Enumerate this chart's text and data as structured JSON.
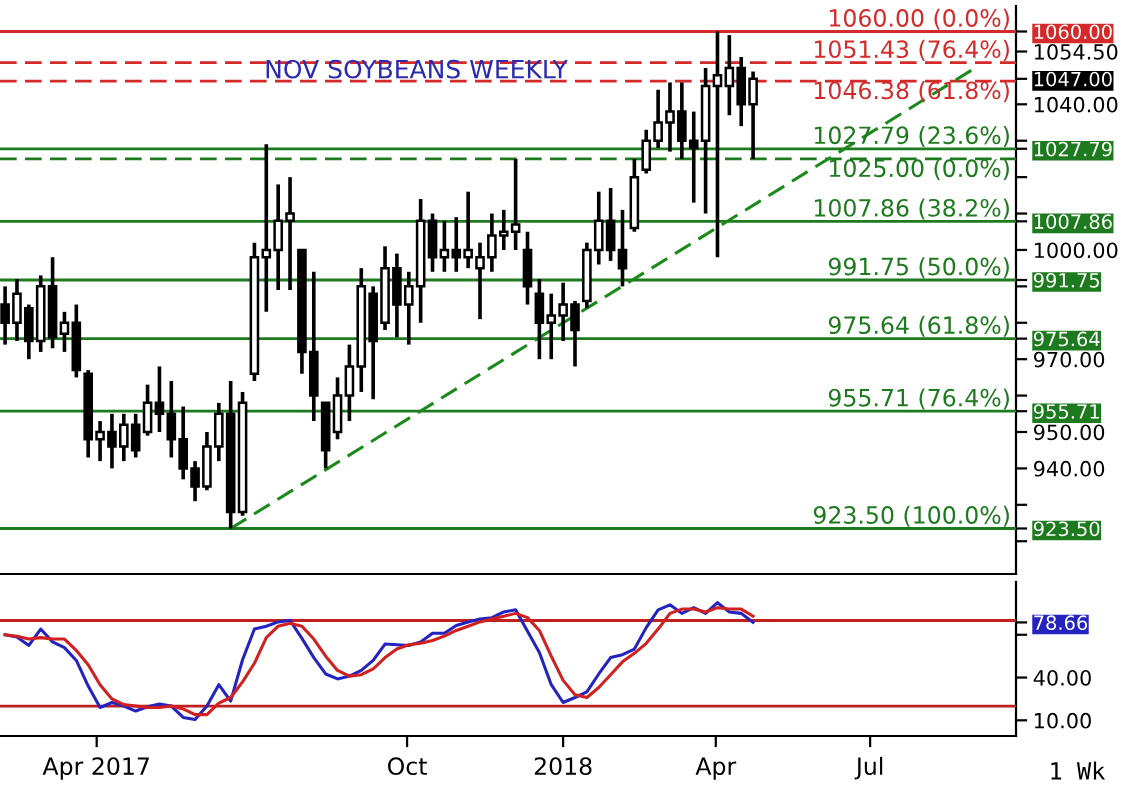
{
  "chart_data": [
    {
      "type": "candlestick",
      "title": "NOV SOYBEANS WEEKLY",
      "x": [
        "2017-02-06",
        "2017-02-13",
        "2017-02-20",
        "2017-02-27",
        "2017-03-06",
        "2017-03-13",
        "2017-03-20",
        "2017-03-27",
        "2017-04-03",
        "2017-04-10",
        "2017-04-17",
        "2017-04-24",
        "2017-05-01",
        "2017-05-08",
        "2017-05-15",
        "2017-05-22",
        "2017-05-29",
        "2017-06-05",
        "2017-06-12",
        "2017-06-19",
        "2017-06-26",
        "2017-07-03",
        "2017-07-10",
        "2017-07-17",
        "2017-07-24",
        "2017-07-31",
        "2017-08-07",
        "2017-08-14",
        "2017-08-21",
        "2017-08-28",
        "2017-09-04",
        "2017-09-11",
        "2017-09-18",
        "2017-09-25",
        "2017-10-02",
        "2017-10-09",
        "2017-10-16",
        "2017-10-23",
        "2017-10-30",
        "2017-11-06",
        "2017-11-13",
        "2017-11-20",
        "2017-11-27",
        "2017-12-04",
        "2017-12-11",
        "2017-12-18",
        "2017-12-25",
        "2018-01-01",
        "2018-01-08",
        "2018-01-15",
        "2018-01-22",
        "2018-01-29",
        "2018-02-05",
        "2018-02-12",
        "2018-02-19",
        "2018-02-26",
        "2018-03-05",
        "2018-03-12",
        "2018-03-19",
        "2018-03-26",
        "2018-04-02",
        "2018-04-09",
        "2018-04-16",
        "2018-04-23"
      ],
      "ohlc": [
        [
          985,
          990,
          974,
          980
        ],
        [
          980,
          992,
          975,
          988
        ],
        [
          984,
          985,
          970,
          975
        ],
        [
          975,
          993,
          972,
          990
        ],
        [
          990,
          998,
          973,
          976
        ],
        [
          977,
          983,
          972,
          980
        ],
        [
          980,
          985,
          965,
          967
        ],
        [
          966,
          967,
          943,
          948
        ],
        [
          948,
          953,
          942,
          950
        ],
        [
          950,
          955,
          940,
          946
        ],
        [
          946,
          955,
          942,
          952
        ],
        [
          952,
          955,
          943,
          945
        ],
        [
          950,
          963,
          949,
          958
        ],
        [
          958,
          968,
          950,
          955
        ],
        [
          955,
          964,
          943,
          948
        ],
        [
          948,
          957,
          937,
          940
        ],
        [
          940,
          942,
          931,
          935
        ],
        [
          935,
          950,
          934,
          946
        ],
        [
          946,
          958,
          942,
          955
        ],
        [
          955,
          964,
          923.5,
          928
        ],
        [
          928,
          961,
          927,
          958
        ],
        [
          966,
          1002,
          964,
          998
        ],
        [
          998,
          1029,
          983,
          1000
        ],
        [
          1000,
          1018,
          989,
          1008
        ],
        [
          1008,
          1020,
          989,
          1010
        ],
        [
          1000,
          1000,
          966,
          972
        ],
        [
          972,
          994,
          953,
          960
        ],
        [
          958,
          958,
          940,
          945
        ],
        [
          950,
          965,
          948,
          960
        ],
        [
          960,
          974,
          953,
          968
        ],
        [
          968,
          995,
          961,
          990
        ],
        [
          988,
          990,
          959,
          975
        ],
        [
          980,
          1001,
          978,
          995
        ],
        [
          995,
          999,
          976,
          985
        ],
        [
          985,
          994,
          974,
          990
        ],
        [
          990,
          1014,
          980,
          1008
        ],
        [
          1008,
          1010,
          994,
          998
        ],
        [
          998,
          1008,
          994,
          1000
        ],
        [
          1000,
          1009,
          994,
          998
        ],
        [
          998,
          1016,
          995,
          1000
        ],
        [
          995,
          1002,
          981,
          998
        ],
        [
          998,
          1010,
          994,
          1004
        ],
        [
          1004,
          1011,
          1000,
          1005
        ],
        [
          1005,
          1025,
          1000,
          1007
        ],
        [
          1000,
          1005,
          985,
          990
        ],
        [
          988,
          992,
          970,
          980
        ],
        [
          980,
          988,
          970,
          982
        ],
        [
          982,
          991,
          975,
          985
        ],
        [
          985,
          986,
          968,
          978
        ],
        [
          986,
          1002,
          984,
          1000
        ],
        [
          1000,
          1016,
          996,
          1008
        ],
        [
          1008,
          1017,
          997,
          1000
        ],
        [
          1000,
          1011,
          990,
          995
        ],
        [
          1006,
          1025,
          1005,
          1020
        ],
        [
          1022,
          1033,
          1021,
          1030
        ],
        [
          1030,
          1044,
          1028,
          1035
        ],
        [
          1035,
          1046,
          1027,
          1038
        ],
        [
          1038,
          1046,
          1025,
          1030
        ],
        [
          1030,
          1038,
          1013,
          1028
        ],
        [
          1030,
          1050,
          1010,
          1045
        ],
        [
          1045,
          1060,
          998,
          1048
        ],
        [
          1045,
          1059,
          1037,
          1050
        ],
        [
          1050,
          1053,
          1034,
          1040
        ],
        [
          1040,
          1049,
          1025,
          1047
        ]
      ],
      "color": "#000000",
      "series": [
        {
          "type": "line",
          "x": [
            "2017-06-19",
            "2018-09-01"
          ],
          "values": [
            923.5,
            1050
          ],
          "color": "#1a8a1a",
          "line_style": "dashed"
        }
      ],
      "ref_lines": [
        {
          "axis": "y",
          "value": 1060,
          "label": "1060.00 (0.0%)",
          "color": "#d42a2a",
          "line_style": "solid"
        },
        {
          "axis": "y",
          "value": 1051.43,
          "label": "1051.43 (76.4%)",
          "color": "#d42a2a",
          "line_style": "dashed"
        },
        {
          "axis": "y",
          "value": 1046.38,
          "label": "1046.38 (61.8%)",
          "color": "#d42a2a",
          "line_style": "dashed"
        },
        {
          "axis": "y",
          "value": 1027.79,
          "label": "1027.79 (23.6%)",
          "color": "#1e7a1e",
          "line_style": "solid"
        },
        {
          "axis": "y",
          "value": 1025.0,
          "label": "1025.00 (0.0%)",
          "color": "#1e7a1e",
          "line_style": "dashed"
        },
        {
          "axis": "y",
          "value": 1007.86,
          "label": "1007.86 (38.2%)",
          "color": "#1e7a1e",
          "line_style": "solid"
        },
        {
          "axis": "y",
          "value": 991.75,
          "label": "991.75 (50.0%)",
          "color": "#1e7a1e",
          "line_style": "solid"
        },
        {
          "axis": "y",
          "value": 975.64,
          "label": "975.64 (61.8%)",
          "color": "#1e7a1e",
          "line_style": "solid"
        },
        {
          "axis": "y",
          "value": 955.71,
          "label": "955.71 (76.4%)",
          "color": "#1e7a1e",
          "line_style": "solid"
        },
        {
          "axis": "y",
          "value": 923.5,
          "label": "923.50 (100.0%)",
          "color": "#1e7a1e",
          "line_style": "solid"
        }
      ],
      "xlim": [
        "2017-02-03",
        "2018-09-25"
      ],
      "ylim": [
        911,
        1067
      ],
      "yticks": [
        {
          "value": 920,
          "label": null
        },
        {
          "value": 923.5,
          "label": "923.50"
        },
        {
          "value": 930,
          "label": null
        },
        {
          "value": 940,
          "label": "940.00"
        },
        {
          "value": 950,
          "label": "950.00"
        },
        {
          "value": 955.71,
          "label": "955.71"
        },
        {
          "value": 960,
          "label": null
        },
        {
          "value": 970,
          "label": "970.00"
        },
        {
          "value": 975.64,
          "label": "975.64"
        },
        {
          "value": 980,
          "label": null
        },
        {
          "value": 990,
          "label": null
        },
        {
          "value": 991.75,
          "label": "991.75"
        },
        {
          "value": 1000,
          "label": "1000.00"
        },
        {
          "value": 1007.86,
          "label": "1007.86"
        },
        {
          "value": 1010,
          "label": null
        },
        {
          "value": 1020,
          "label": null
        },
        {
          "value": 1027.79,
          "label": "1027.79"
        },
        {
          "value": 1030,
          "label": null
        },
        {
          "value": 1040,
          "label": "1040.00"
        },
        {
          "value": 1047,
          "label": "1047.00"
        },
        {
          "value": 1054.5,
          "label": "1054.50"
        },
        {
          "value": 1060,
          "label": "1060.00"
        }
      ],
      "tick_labels": "y"
    },
    {
      "type": "line",
      "x": [
        "2017-02-06",
        "2017-02-13",
        "2017-02-20",
        "2017-02-27",
        "2017-03-06",
        "2017-03-13",
        "2017-03-20",
        "2017-03-27",
        "2017-04-03",
        "2017-04-10",
        "2017-04-17",
        "2017-04-24",
        "2017-05-01",
        "2017-05-08",
        "2017-05-15",
        "2017-05-22",
        "2017-05-29",
        "2017-06-05",
        "2017-06-12",
        "2017-06-19",
        "2017-06-26",
        "2017-07-03",
        "2017-07-10",
        "2017-07-17",
        "2017-07-24",
        "2017-07-31",
        "2017-08-07",
        "2017-08-14",
        "2017-08-21",
        "2017-08-28",
        "2017-09-04",
        "2017-09-11",
        "2017-09-18",
        "2017-09-25",
        "2017-10-02",
        "2017-10-09",
        "2017-10-16",
        "2017-10-23",
        "2017-10-30",
        "2017-11-06",
        "2017-11-13",
        "2017-11-20",
        "2017-11-27",
        "2017-12-04",
        "2017-12-11",
        "2017-12-18",
        "2017-12-25",
        "2018-01-01",
        "2018-01-08",
        "2018-01-15",
        "2018-01-22",
        "2018-01-29",
        "2018-02-05",
        "2018-02-12",
        "2018-02-19",
        "2018-02-26",
        "2018-03-05",
        "2018-03-12",
        "2018-03-19",
        "2018-03-26",
        "2018-04-02",
        "2018-04-09",
        "2018-04-16",
        "2018-04-23"
      ],
      "series": [
        {
          "color": "#2323c0",
          "values": [
            70,
            68.5,
            62.5,
            74,
            65,
            61,
            52,
            34,
            19,
            22.5,
            20,
            16.5,
            19.5,
            21.5,
            20,
            12,
            10.5,
            20,
            35,
            23.5,
            52.5,
            74,
            76,
            79,
            80,
            67.5,
            54,
            42.5,
            39,
            41,
            45,
            52,
            63.5,
            63,
            62.5,
            65,
            71,
            71,
            76.5,
            79,
            81,
            82,
            86,
            87.5,
            72.5,
            57.5,
            35,
            22.5,
            26,
            30,
            42.5,
            54,
            56,
            60,
            75,
            87.5,
            91,
            85,
            89,
            85,
            92.5,
            86,
            85,
            78.66
          ]
        },
        {
          "color": "#d02020",
          "values": [
            70,
            69,
            67,
            68,
            67,
            67,
            59,
            49,
            35,
            25,
            21,
            20,
            19,
            19,
            20,
            18,
            14,
            14,
            22,
            26,
            37,
            50,
            68,
            76,
            78,
            76,
            67,
            55,
            45,
            41,
            42,
            46,
            54,
            60,
            63,
            64,
            66,
            69,
            73,
            76,
            79,
            81,
            83,
            85,
            82,
            73,
            55,
            38,
            28,
            26,
            33,
            42,
            51,
            57,
            64,
            74,
            85,
            88,
            88,
            86,
            89,
            88,
            88,
            83
          ]
        }
      ],
      "ref_lines": [
        {
          "axis": "y",
          "value": 80,
          "color": "#c02020",
          "line_style": "solid"
        },
        {
          "axis": "y",
          "value": 20,
          "color": "#c02020",
          "line_style": "solid"
        }
      ],
      "annotations": [
        "1 Wk"
      ],
      "xlim": [
        "2017-02-03",
        "2018-09-25"
      ],
      "xticks": [
        {
          "value": "2017-04-01",
          "label": "Apr 2017"
        },
        {
          "value": "2017-10-01",
          "label": "Oct"
        },
        {
          "value": "2018-01-01",
          "label": "2018"
        },
        {
          "value": "2018-04-01",
          "label": "Apr"
        },
        {
          "value": "2018-07-01",
          "label": "Jul"
        }
      ],
      "ylim": [
        -1,
        107
      ],
      "yticks": [
        {
          "value": 10,
          "label": "10.00"
        },
        {
          "value": 40,
          "label": "40.00"
        },
        {
          "value": 70,
          "label": null
        },
        {
          "value": 78.66,
          "label": "78.66"
        }
      ]
    }
  ]
}
